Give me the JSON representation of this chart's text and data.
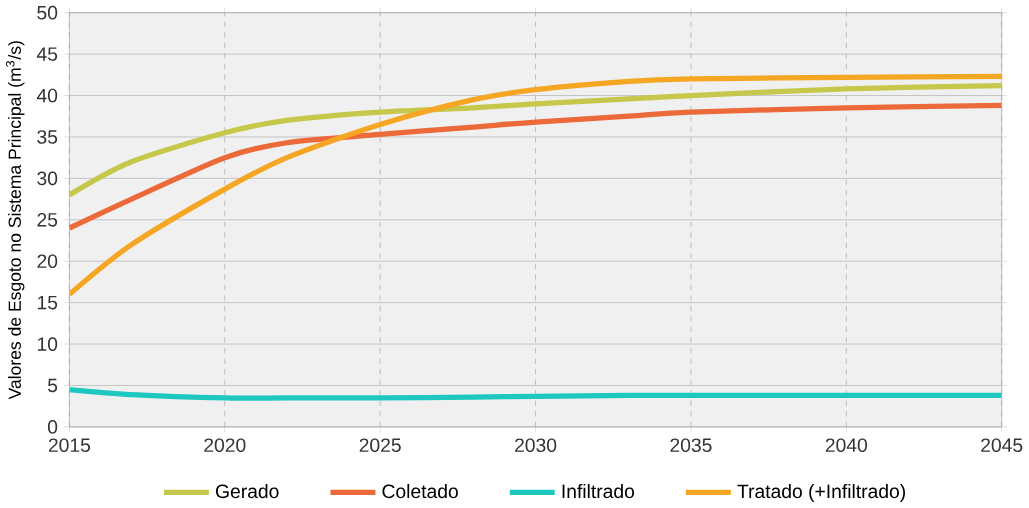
{
  "chart_data": {
    "type": "line",
    "ylabel": "Valores de Esgoto no Sistema Principal (m$^{3}$/s)",
    "x": [
      2015,
      2017,
      2020,
      2022,
      2025,
      2028,
      2030,
      2033,
      2035,
      2040,
      2045
    ],
    "series": [
      {
        "name": "Gerado",
        "color": "#c5c84a",
        "values": [
          28,
          32,
          35.5,
          37,
          38,
          38.5,
          39,
          39.6,
          40,
          40.8,
          41.2
        ]
      },
      {
        "name": "Coletado",
        "color": "#ec6a3a",
        "values": [
          24,
          27.5,
          32.5,
          34.3,
          35.3,
          36.2,
          36.8,
          37.5,
          38,
          38.5,
          38.8
        ]
      },
      {
        "name": "Infiltrado",
        "color": "#1ec8c0",
        "values": [
          4.5,
          3.9,
          3.5,
          3.5,
          3.5,
          3.6,
          3.7,
          3.8,
          3.8,
          3.8,
          3.8
        ]
      },
      {
        "name": "Tratado (+Infiltrado)",
        "color": "#f5a623",
        "values": [
          16,
          22,
          28.7,
          32.5,
          36.5,
          39.5,
          40.7,
          41.7,
          42,
          42.2,
          42.3
        ]
      }
    ],
    "xlim": [
      2015,
      2045
    ],
    "xticks": [
      2015,
      2020,
      2025,
      2030,
      2035,
      2040,
      2045
    ],
    "ylim": [
      0,
      50
    ],
    "yticks": [
      0,
      5,
      10,
      15,
      20,
      25,
      30,
      35,
      40,
      45,
      50
    ],
    "grid": true,
    "legend": "bottom",
    "marker": "none",
    "line_style": "solid"
  }
}
